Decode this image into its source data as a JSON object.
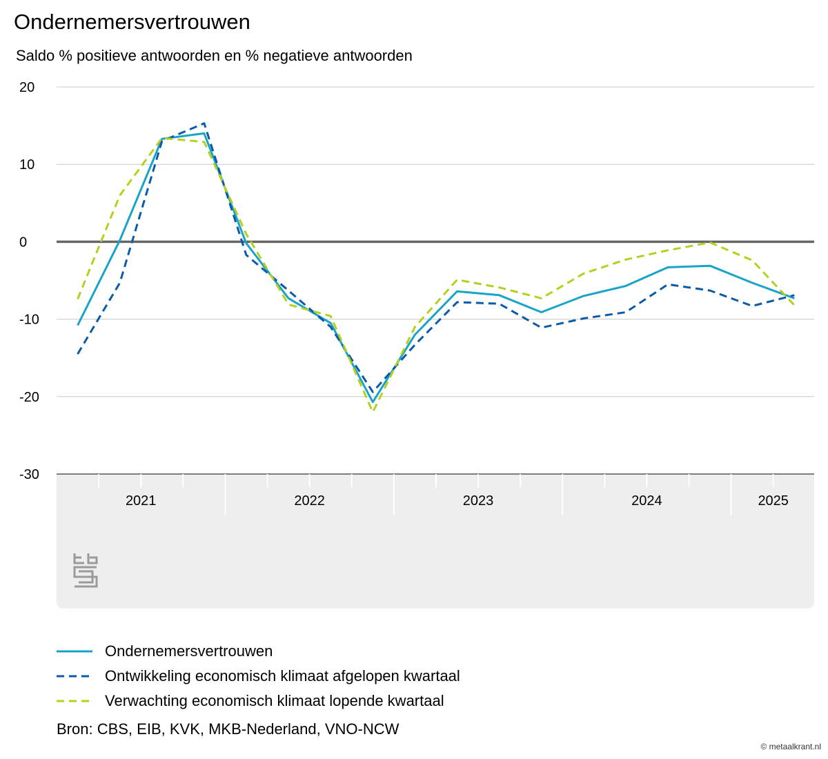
{
  "chart_data": {
    "type": "line",
    "title": "Ondernemersvertrouwen",
    "subtitle": "Saldo % positieve antwoorden en % negatieve antwoorden",
    "ylim": [
      -30,
      20
    ],
    "yticks": [
      20,
      10,
      0,
      -10,
      -20,
      -30
    ],
    "quarters": [
      "2021 Q1",
      "2021 Q2",
      "2021 Q3",
      "2021 Q4",
      "2022 Q1",
      "2022 Q2",
      "2022 Q3",
      "2022 Q4",
      "2023 Q1",
      "2023 Q2",
      "2023 Q3",
      "2023 Q4",
      "2024 Q1",
      "2024 Q2",
      "2024 Q3",
      "2024 Q4",
      "2025 Q1",
      "2025 Q2"
    ],
    "years": [
      {
        "label": "2021",
        "quarters": 4
      },
      {
        "label": "2022",
        "quarters": 4
      },
      {
        "label": "2023",
        "quarters": 4
      },
      {
        "label": "2024",
        "quarters": 4
      },
      {
        "label": "2025",
        "quarters": 2
      }
    ],
    "series": [
      {
        "name": "Ondernemersvertrouwen",
        "color": "#1aa3c8",
        "dash": "solid",
        "values": [
          -10.8,
          0.2,
          13.3,
          14.0,
          -0.2,
          -7.3,
          -10.5,
          -20.7,
          -12.0,
          -6.4,
          -6.9,
          -9.1,
          -7.0,
          -5.7,
          -3.3,
          -3.1,
          -5.3,
          -7.3
        ]
      },
      {
        "name": "Ontwikkeling economisch klimaat afgelopen kwartaal",
        "color": "#0b5aa8",
        "dash": "dashed",
        "values": [
          -14.5,
          -5.3,
          13.0,
          15.3,
          -1.7,
          -6.3,
          -11.0,
          -19.4,
          -13.3,
          -7.8,
          -8.0,
          -11.1,
          -9.9,
          -9.1,
          -5.5,
          -6.3,
          -8.3,
          -6.9
        ]
      },
      {
        "name": "Verwachting economisch klimaat lopende kwartaal",
        "color": "#b5cf1f",
        "dash": "dashed",
        "values": [
          -7.4,
          6.0,
          13.4,
          12.9,
          1.0,
          -8.1,
          -9.6,
          -22.0,
          -11.0,
          -4.9,
          -5.9,
          -7.3,
          -4.1,
          -2.3,
          -1.1,
          -0.1,
          -2.4,
          -8.2
        ]
      }
    ]
  },
  "legend": [
    {
      "label": "Ondernemersvertrouwen",
      "color": "#1aa3c8",
      "dash": "solid"
    },
    {
      "label": "Ontwikkeling economisch klimaat afgelopen kwartaal",
      "color": "#0b5aa8",
      "dash": "dashed"
    },
    {
      "label": "Verwachting economisch klimaat lopende kwartaal",
      "color": "#b5cf1f",
      "dash": "dashed"
    }
  ],
  "logo": {
    "icon": "cbs-logo-icon",
    "text": "cbs"
  },
  "source": "Bron: CBS, EIB, KVK, MKB-Nederland, VNO-NCW",
  "credit": "© metaalkrant.nl"
}
